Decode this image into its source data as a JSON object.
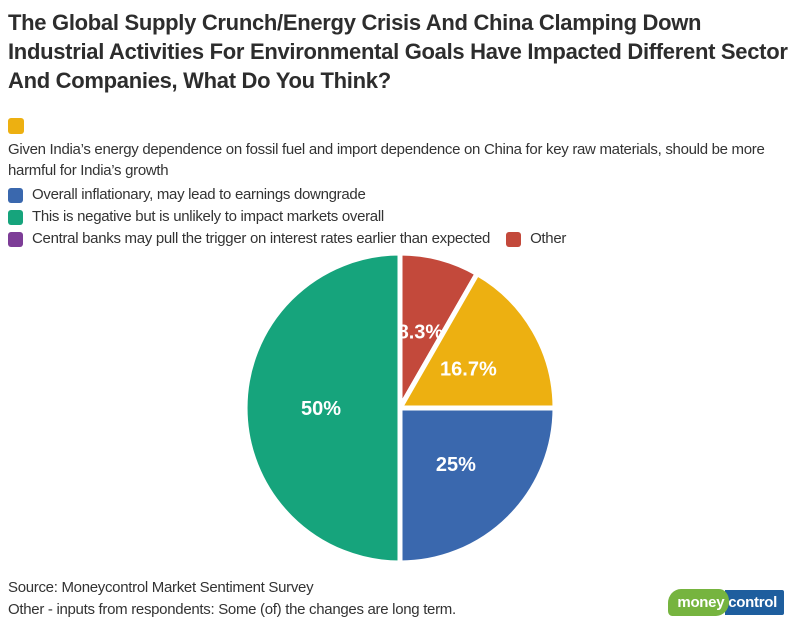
{
  "chart_data": {
    "type": "pie",
    "title": "The Global Supply Crunch/Energy Crisis And China Clamping Down Industrial Activities For Environmental Goals Have Impacted Different Sector And Companies, What Do You Think?",
    "legend": [
      {
        "label": "Given India’s energy dependence on fossil fuel and import dependence on China for key raw materials, should be more harmful for India’s growth",
        "color": "#edb011"
      },
      {
        "label": "Overall inflationary, may lead to earnings downgrade",
        "color": "#3a68ae"
      },
      {
        "label": "This is negative but is unlikely to impact markets overall",
        "color": "#16a47c"
      },
      {
        "label": "Central banks may pull the trigger on interest rates earlier than expected",
        "color": "#7d3d97"
      },
      {
        "label": "Other",
        "color": "#c3493b"
      }
    ],
    "slices": [
      {
        "legend_index": 4,
        "value": 8.3,
        "display": "8.3%"
      },
      {
        "legend_index": 0,
        "value": 16.7,
        "display": "16.7%"
      },
      {
        "legend_index": 1,
        "value": 25,
        "display": "25%"
      },
      {
        "legend_index": 2,
        "value": 50,
        "display": "50%"
      }
    ],
    "start_angle_deg": 0,
    "direction": "clockwise",
    "label_color": "#ffffff",
    "slice_gap_color": "#ffffff"
  },
  "source": {
    "line1": "Source: Moneycontrol Market Sentiment Survey",
    "line2": "Other - inputs from respondents: Some (of) the changes are long term."
  },
  "logo": {
    "part1": "money",
    "part2": "control",
    "green": "#76b43f",
    "blue": "#1e5e9e"
  }
}
